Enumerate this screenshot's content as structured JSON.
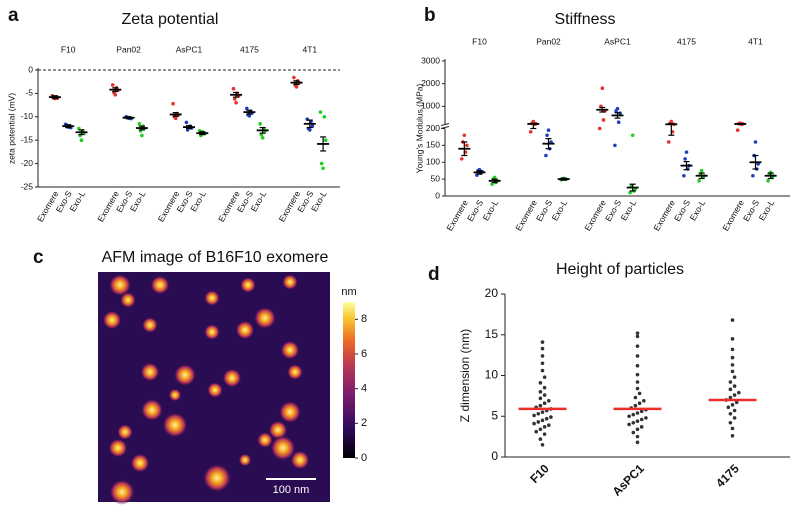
{
  "chart_data": [
    {
      "panel": "a",
      "type": "dot",
      "title": "Zeta potential",
      "ylabel": "zeta potential (mV)",
      "categories": [
        "F10",
        "Pan02",
        "AsPC1",
        "4175",
        "4T1"
      ],
      "ylim": [
        -25,
        0
      ],
      "yticks": [
        0,
        -5,
        -10,
        -15,
        -20,
        -25
      ],
      "reference_line": 0,
      "series": [
        {
          "name": "Exomere",
          "color": "#e8302a",
          "values": [
            -5.8,
            -4.2,
            -9.5,
            -5.3,
            -2.7
          ],
          "errors": [
            0.3,
            0.4,
            0.4,
            0.5,
            0.4
          ],
          "points": [
            [
              -5.5,
              -5.8,
              -6,
              -5.9,
              -6.1
            ],
            [
              -3.2,
              -3.8,
              -4.3,
              -4.8,
              -5.3
            ],
            [
              -7.2,
              -9.3,
              -9.6,
              -10,
              -10.3
            ],
            [
              -4,
              -5,
              -5.5,
              -6.2,
              -7
            ],
            [
              -1.6,
              -2.3,
              -2.7,
              -3.2,
              -3.6
            ]
          ]
        },
        {
          "name": "Exo-S",
          "color": "#1f3fbf",
          "values": [
            -12,
            -10.2,
            -12.2,
            -9,
            -11.5
          ],
          "errors": [
            0.3,
            0.2,
            0.3,
            0.4,
            0.8
          ],
          "points": [
            [
              -11.6,
              -12,
              -12.3,
              -11.8,
              -12.2
            ],
            [
              -10,
              -10.2,
              -10.4,
              -10.1,
              -10.3
            ],
            [
              -11.2,
              -12,
              -12.4,
              -12.8,
              -12.3
            ],
            [
              -8.2,
              -8.8,
              -9.2,
              -9.6,
              -9.8
            ],
            [
              -10.5,
              -11,
              -12,
              -12.5,
              -12.8
            ]
          ]
        },
        {
          "name": "Exo-L",
          "color": "#22cc22",
          "values": [
            -13.3,
            -12.4,
            -13.5,
            -12.9,
            -15.8
          ],
          "errors": [
            0.5,
            0.4,
            0.3,
            0.6,
            1.5
          ],
          "points": [
            [
              -12.5,
              -13,
              -13.5,
              -14,
              -15
            ],
            [
              -11.5,
              -12,
              -12.5,
              -13,
              -14
            ],
            [
              -13,
              -13.4,
              -13.6,
              -14,
              -13.2
            ],
            [
              -11.5,
              -12.5,
              -13,
              -13.8,
              -14.5
            ],
            [
              -9,
              -10,
              -15,
              -20,
              -21
            ]
          ]
        }
      ]
    },
    {
      "panel": "b",
      "type": "dot",
      "title": "Stiffness",
      "ylabel": "Young's Modulus (MPa)",
      "categories": [
        "F10",
        "Pan02",
        "AsPC1",
        "4175",
        "4T1"
      ],
      "ylim": [
        0,
        3000
      ],
      "axis_break": 200,
      "yticks": [
        0,
        50,
        100,
        150,
        200,
        1000,
        2000,
        3000
      ],
      "series": [
        {
          "name": "Exomere",
          "color": "#e8302a",
          "values": [
            140,
            225,
            850,
            210,
            225
          ],
          "errors": [
            20,
            25,
            100,
            30,
            15
          ],
          "points": [
            [
              110,
              130,
              150,
              160,
              180
            ],
            [
              190,
              210,
              230,
              250,
              330
            ],
            [
              200,
              400,
              800,
              1000,
              1800
            ],
            [
              160,
              190,
              210,
              250,
              330
            ],
            [
              195,
              210,
              225,
              240,
              260
            ]
          ]
        },
        {
          "name": "Exo-S",
          "color": "#1f3fbf",
          "values": [
            70,
            155,
            600,
            90,
            100
          ],
          "errors": [
            5,
            15,
            120,
            12,
            20
          ],
          "points": [
            [
              62,
              68,
              72,
              75,
              78
            ],
            [
              120,
              140,
              160,
              180,
              195
            ],
            [
              150,
              300,
              700,
              800,
              900
            ],
            [
              60,
              80,
              90,
              110,
              130
            ],
            [
              60,
              80,
              95,
              120,
              160
            ]
          ]
        },
        {
          "name": "Exo-L",
          "color": "#22cc22",
          "values": [
            45,
            50,
            25,
            60,
            60
          ],
          "errors": [
            5,
            3,
            10,
            8,
            8
          ],
          "points": [
            [
              35,
              40,
              45,
              50,
              55
            ],
            [
              48,
              50,
              50,
              51,
              52
            ],
            [
              10,
              15,
              20,
              30,
              180
            ],
            [
              45,
              55,
              60,
              65,
              75
            ],
            [
              45,
              55,
              60,
              65,
              70
            ]
          ]
        }
      ]
    },
    {
      "panel": "c",
      "type": "image",
      "title": "AFM image of B16F10 exomere",
      "colorbar": {
        "label": "nm",
        "lim": [
          0,
          9
        ],
        "ticks": [
          0,
          2,
          4,
          6,
          8
        ]
      },
      "scale_bar": "100 nm"
    },
    {
      "panel": "d",
      "type": "swarm",
      "title": "Height of particles",
      "ylabel": "Z dimension (nm)",
      "categories": [
        "F10",
        "AsPC1",
        "4175"
      ],
      "ylim": [
        0,
        20
      ],
      "yticks": [
        0,
        5,
        10,
        15,
        20
      ],
      "point_color": "#333333",
      "mean_color": "#e8302a",
      "means": [
        5.9,
        5.9,
        7.0
      ],
      "points": [
        [
          1.5,
          2.2,
          2.8,
          3.1,
          3.4,
          3.7,
          3.9,
          4.1,
          4.3,
          4.5,
          4.7,
          4.9,
          5.1,
          5.3,
          5.5,
          5.7,
          5.9,
          6.1,
          6.3,
          6.6,
          6.9,
          7.2,
          7.6,
          8.0,
          8.5,
          9.1,
          9.8,
          10.6,
          11.5,
          12.4,
          13.3,
          14.1
        ],
        [
          1.8,
          2.5,
          3.0,
          3.4,
          3.7,
          4.0,
          4.2,
          4.4,
          4.6,
          4.8,
          5.0,
          5.2,
          5.4,
          5.6,
          5.8,
          6.0,
          6.3,
          6.6,
          6.9,
          7.3,
          7.8,
          8.4,
          9.2,
          10.1,
          11.2,
          12.4,
          13.6,
          14.8,
          15.2
        ],
        [
          2.6,
          3.5,
          4.2,
          4.8,
          5.3,
          5.7,
          6.1,
          6.4,
          6.7,
          7.0,
          7.3,
          7.6,
          7.9,
          8.3,
          8.7,
          9.2,
          9.8,
          10.5,
          11.3,
          12.2,
          13.2,
          14.5,
          16.8
        ]
      ]
    }
  ]
}
